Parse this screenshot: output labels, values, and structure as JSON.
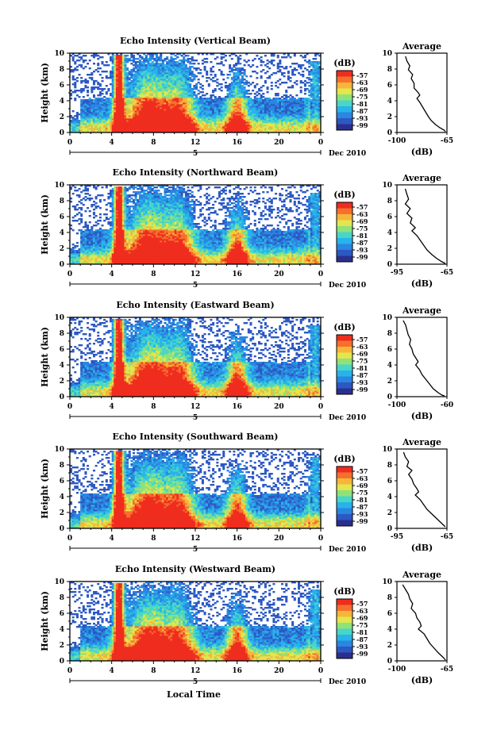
{
  "colors": {
    "scale": [
      "#2b2f8f",
      "#2c58c2",
      "#2a86e0",
      "#29b3ea",
      "#48d6c8",
      "#8fe27a",
      "#e3e64d",
      "#f7b53a",
      "#f5702d",
      "#ef2d1f"
    ],
    "grid_line": "#000000"
  },
  "common": {
    "ylabel": "Height (km)",
    "xlabel": "Local Time",
    "x_ticks": [
      "0",
      "4",
      "8",
      "12",
      "16",
      "20",
      "0"
    ],
    "y_ticks": [
      "0",
      "2",
      "4",
      "6",
      "8",
      "10"
    ],
    "date_mark": "5",
    "date_label": "Dec 2010",
    "cb_title": "(dB)",
    "avg_title": "Average",
    "avg_xlabel": "(dB)"
  },
  "chart_data": [
    {
      "type": "heatmap",
      "title": "Echo Intensity (Vertical Beam)",
      "ylabel": "Height (km)",
      "xlim": [
        0,
        24
      ],
      "ylim": [
        0,
        10
      ],
      "colorbar_ticks": [
        "-57",
        "-63",
        "-69",
        "-75",
        "-81",
        "-87",
        "-93",
        "-99"
      ],
      "profile_ticks": [
        "-100",
        "-65"
      ],
      "profile_xlim": [
        -100,
        -65
      ],
      "profile": [
        [
          -94,
          9.6
        ],
        [
          -93,
          9.0
        ],
        [
          -91,
          8.4
        ],
        [
          -92,
          7.9
        ],
        [
          -89,
          7.3
        ],
        [
          -90,
          6.8
        ],
        [
          -88,
          6.2
        ],
        [
          -88,
          5.6
        ],
        [
          -85,
          5.0
        ],
        [
          -84,
          4.7
        ],
        [
          -86,
          4.3
        ],
        [
          -84,
          3.8
        ],
        [
          -82,
          3.2
        ],
        [
          -80,
          2.6
        ],
        [
          -78,
          2.0
        ],
        [
          -76,
          1.5
        ],
        [
          -73,
          1.0
        ],
        [
          -70,
          0.6
        ],
        [
          -67,
          0.3
        ],
        [
          -66,
          0.1
        ]
      ]
    },
    {
      "type": "heatmap",
      "title": "Echo Intensity (Northward Beam)",
      "ylabel": "Height (km)",
      "xlim": [
        0,
        24
      ],
      "ylim": [
        0,
        10
      ],
      "colorbar_ticks": [
        "-57",
        "-63",
        "-69",
        "-75",
        "-81",
        "-87",
        "-93",
        "-99"
      ],
      "profile_ticks": [
        "-95",
        "-65"
      ],
      "profile_xlim": [
        -95,
        -65
      ],
      "profile": [
        [
          -90,
          9.5
        ],
        [
          -89,
          8.8
        ],
        [
          -88,
          8.2
        ],
        [
          -90,
          7.6
        ],
        [
          -87,
          7.0
        ],
        [
          -89,
          6.4
        ],
        [
          -86,
          5.8
        ],
        [
          -87,
          5.2
        ],
        [
          -84,
          4.6
        ],
        [
          -86,
          4.2
        ],
        [
          -83,
          3.6
        ],
        [
          -81,
          3.0
        ],
        [
          -79,
          2.4
        ],
        [
          -77,
          1.8
        ],
        [
          -74,
          1.2
        ],
        [
          -71,
          0.7
        ],
        [
          -68,
          0.3
        ],
        [
          -66,
          0.1
        ]
      ]
    },
    {
      "type": "heatmap",
      "title": "Echo Intensity (Eastward Beam)",
      "ylabel": "Height (km)",
      "xlim": [
        0,
        24
      ],
      "ylim": [
        0,
        10
      ],
      "colorbar_ticks": [
        "-57",
        "-63",
        "-69",
        "-75",
        "-81",
        "-87",
        "-93",
        "-99"
      ],
      "profile_ticks": [
        "-100",
        "-60"
      ],
      "profile_xlim": [
        -100,
        -60
      ],
      "profile": [
        [
          -95,
          9.6
        ],
        [
          -93,
          9.0
        ],
        [
          -92,
          8.4
        ],
        [
          -91,
          7.8
        ],
        [
          -89,
          7.2
        ],
        [
          -90,
          6.6
        ],
        [
          -88,
          6.0
        ],
        [
          -87,
          5.4
        ],
        [
          -85,
          4.9
        ],
        [
          -83,
          4.4
        ],
        [
          -85,
          4.0
        ],
        [
          -82,
          3.4
        ],
        [
          -80,
          2.8
        ],
        [
          -77,
          2.2
        ],
        [
          -74,
          1.6
        ],
        [
          -71,
          1.0
        ],
        [
          -67,
          0.5
        ],
        [
          -64,
          0.2
        ],
        [
          -62,
          0.1
        ]
      ]
    },
    {
      "type": "heatmap",
      "title": "Echo Intensity (Southward Beam)",
      "ylabel": "Height (km)",
      "xlim": [
        0,
        24
      ],
      "ylim": [
        0,
        10
      ],
      "colorbar_ticks": [
        "-57",
        "-63",
        "-69",
        "-75",
        "-81",
        "-87",
        "-93",
        "-99"
      ],
      "profile_ticks": [
        "-95",
        "-65"
      ],
      "profile_xlim": [
        -95,
        -65
      ],
      "profile": [
        [
          -91,
          9.6
        ],
        [
          -90,
          9.0
        ],
        [
          -88,
          8.4
        ],
        [
          -89,
          7.8
        ],
        [
          -86,
          7.3
        ],
        [
          -88,
          6.8
        ],
        [
          -86,
          6.2
        ],
        [
          -85,
          5.6
        ],
        [
          -83,
          5.0
        ],
        [
          -82,
          4.6
        ],
        [
          -84,
          4.2
        ],
        [
          -81,
          3.6
        ],
        [
          -79,
          3.0
        ],
        [
          -77,
          2.4
        ],
        [
          -74,
          1.8
        ],
        [
          -71,
          1.2
        ],
        [
          -68,
          0.6
        ],
        [
          -66,
          0.2
        ]
      ]
    },
    {
      "type": "heatmap",
      "title": "Echo Intensity (Westward Beam)",
      "ylabel": "Height (km)",
      "xlabel": "Local Time",
      "xlim": [
        0,
        24
      ],
      "ylim": [
        0,
        10
      ],
      "colorbar_ticks": [
        "-57",
        "-63",
        "-69",
        "-75",
        "-81",
        "-87",
        "-93",
        "-99"
      ],
      "profile_ticks": [
        "-100",
        "-65"
      ],
      "profile_xlim": [
        -100,
        -65
      ],
      "profile": [
        [
          -96,
          9.6
        ],
        [
          -94,
          9.0
        ],
        [
          -92,
          8.4
        ],
        [
          -91,
          7.8
        ],
        [
          -89,
          7.2
        ],
        [
          -90,
          6.6
        ],
        [
          -87,
          6.0
        ],
        [
          -86,
          5.4
        ],
        [
          -84,
          4.9
        ],
        [
          -83,
          4.4
        ],
        [
          -85,
          4.0
        ],
        [
          -81,
          3.4
        ],
        [
          -79,
          2.8
        ],
        [
          -77,
          2.2
        ],
        [
          -74,
          1.6
        ],
        [
          -71,
          1.0
        ],
        [
          -68,
          0.5
        ],
        [
          -66,
          0.1
        ]
      ]
    }
  ]
}
